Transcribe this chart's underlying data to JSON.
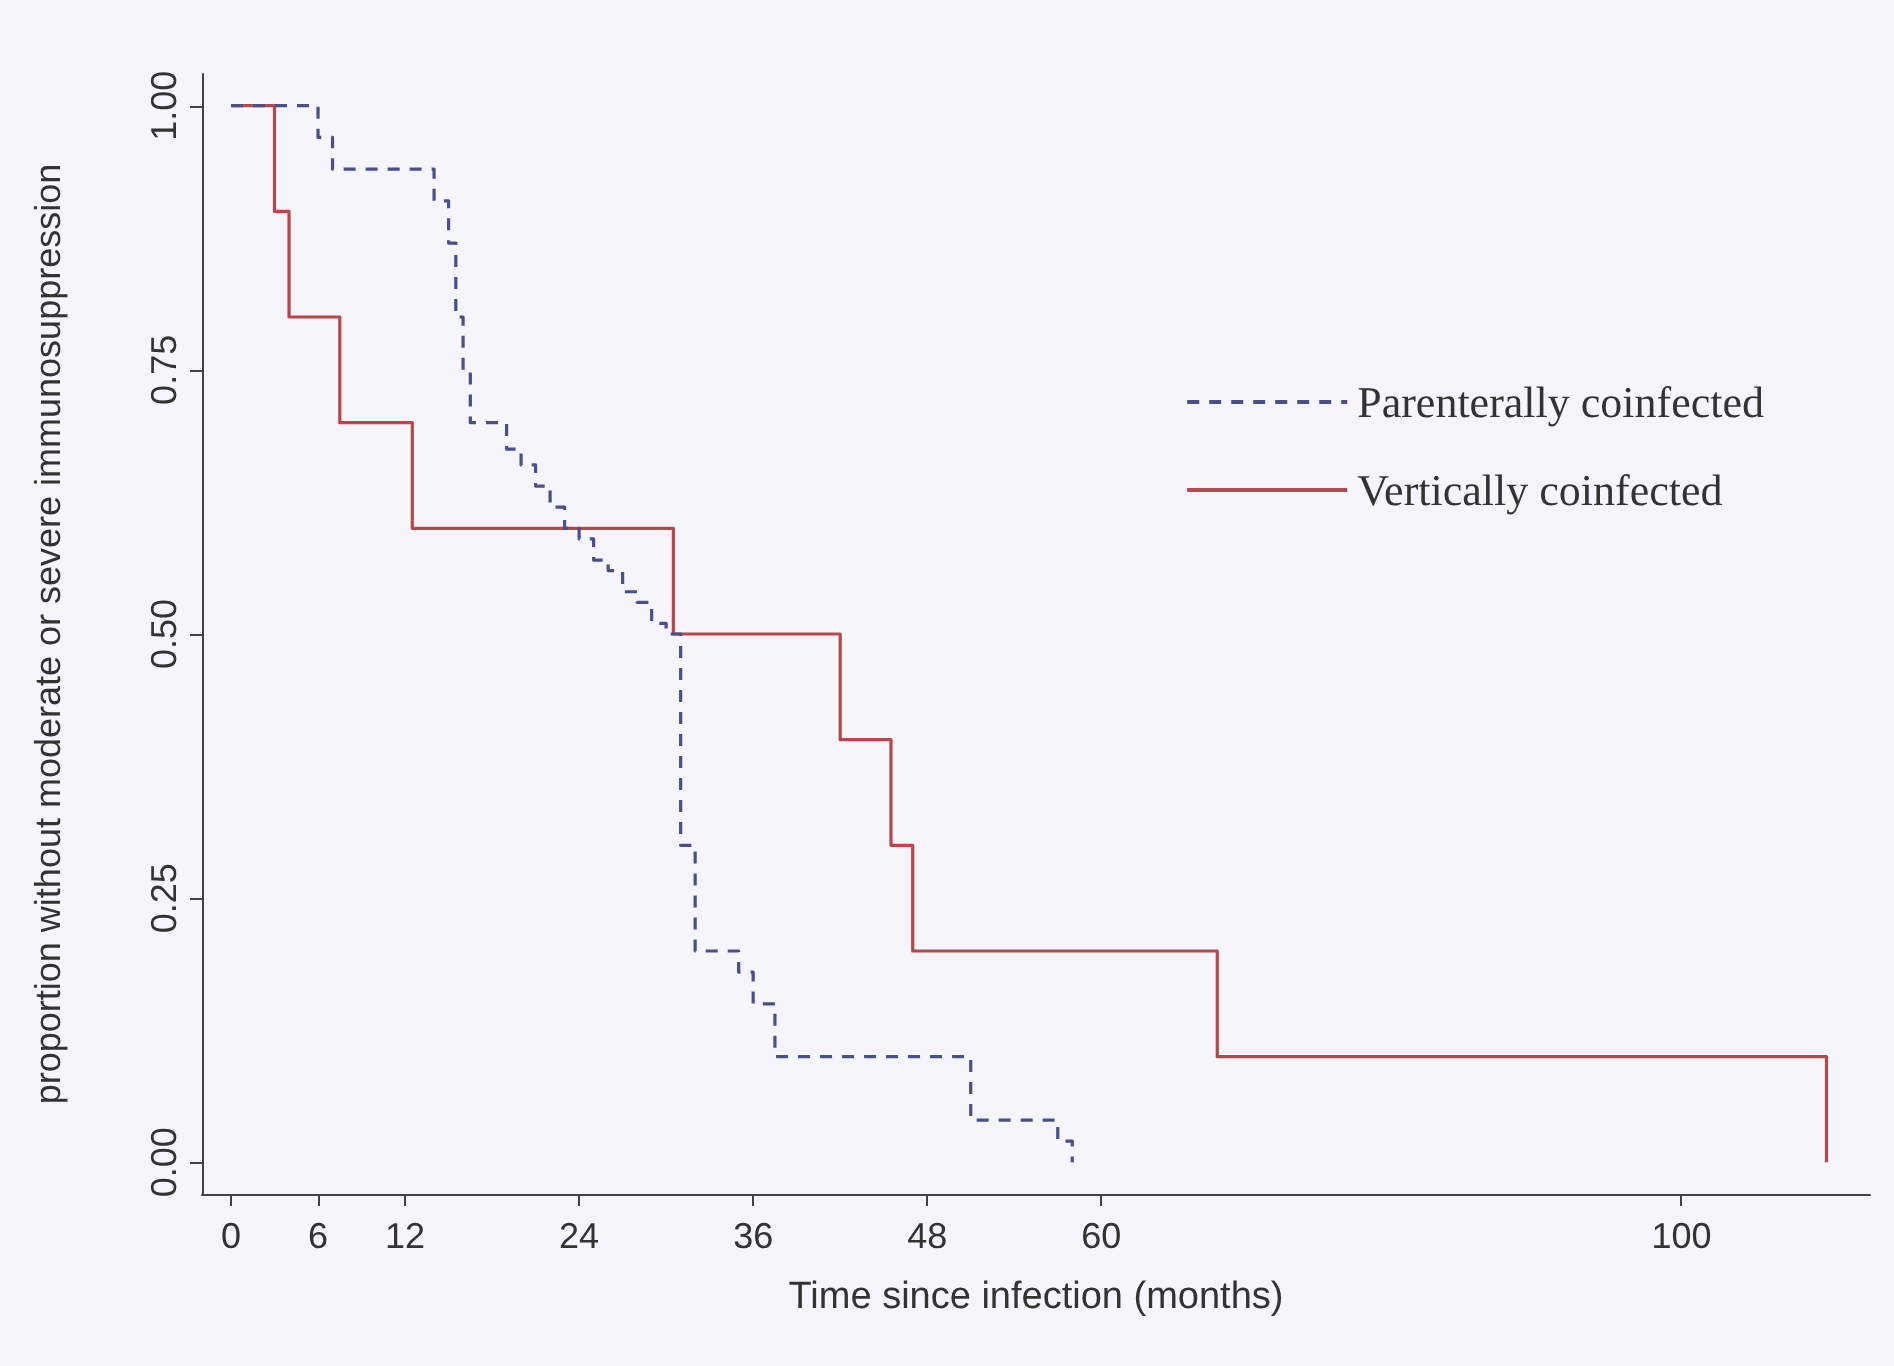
{
  "chart_data": {
    "type": "step",
    "xlabel": "Time since infection (months)",
    "ylabel": "proportion without moderate or severe immunosuppression",
    "xlim": [
      -2,
      113
    ],
    "xticks": [
      0,
      6,
      12,
      24,
      36,
      48,
      60,
      100
    ],
    "ylim": [
      -0.03,
      1.03
    ],
    "yticks": [
      {
        "value": 0,
        "label": "0.00"
      },
      {
        "value": 0.25,
        "label": "0.25"
      },
      {
        "value": 0.5,
        "label": "0.50"
      },
      {
        "value": 0.75,
        "label": "0.75"
      },
      {
        "value": 1,
        "label": "1.00"
      }
    ],
    "grid": false,
    "legend": "top right",
    "series": [
      {
        "name": "Parenterally coinfected",
        "color": "#4a4f8c",
        "line_style": "dashed",
        "x": [
          0,
          6,
          7,
          14,
          15,
          15.5,
          16,
          16.5,
          19,
          20,
          21,
          22,
          23,
          24,
          25,
          26,
          27,
          28,
          29,
          30,
          31,
          32,
          35,
          36,
          37.5,
          51,
          57,
          58
        ],
        "values": [
          1,
          0.97,
          0.94,
          0.91,
          0.87,
          0.8,
          0.75,
          0.7,
          0.675,
          0.66,
          0.64,
          0.62,
          0.6,
          0.59,
          0.57,
          0.56,
          0.54,
          0.53,
          0.51,
          0.5,
          0.3,
          0.2,
          0.18,
          0.15,
          0.1,
          0.04,
          0.02,
          0
        ]
      },
      {
        "name": "Vertically coinfected",
        "color": "#b5484a",
        "line_style": "solid",
        "x": [
          0,
          3,
          4,
          7.5,
          12.5,
          30.5,
          42,
          45.5,
          47,
          68,
          110
        ],
        "values": [
          1,
          0.9,
          0.8,
          0.7,
          0.6,
          0.5,
          0.4,
          0.3,
          0.2,
          0.1,
          0
        ]
      }
    ]
  }
}
